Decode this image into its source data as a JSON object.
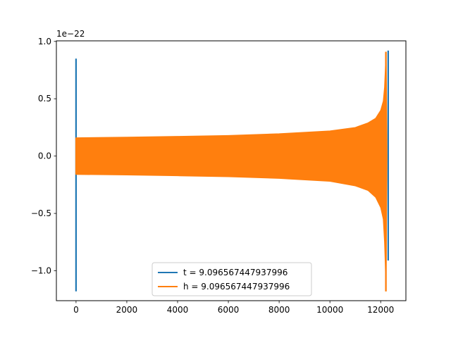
{
  "chart_data": {
    "type": "line",
    "x_range": [
      -774,
      12993
    ],
    "y_range": [
      -1.261e-22,
      1.005e-22
    ],
    "offset_text": "1e−22",
    "x_ticks": [
      {
        "value": 0,
        "label": "0"
      },
      {
        "value": 2000,
        "label": "2000"
      },
      {
        "value": 4000,
        "label": "4000"
      },
      {
        "value": 6000,
        "label": "6000"
      },
      {
        "value": 8000,
        "label": "8000"
      },
      {
        "value": 10000,
        "label": "10000"
      },
      {
        "value": 12000,
        "label": "12000"
      }
    ],
    "y_ticks": [
      {
        "value": 1e-22,
        "label": "1.0"
      },
      {
        "value": 5e-23,
        "label": "0.5"
      },
      {
        "value": 0.0,
        "label": "0.0"
      },
      {
        "value": -5e-23,
        "label": "−0.5"
      },
      {
        "value": -1e-22,
        "label": "−1.0"
      }
    ],
    "legend_position": "lower-center",
    "series": [
      {
        "name": "t = 9.096567447937996",
        "color": "#1f77b4",
        "pulses": [
          {
            "x": 0,
            "ymin": -1.18e-22,
            "ymax": 8.5e-23
          },
          {
            "x": 12295,
            "ymin": -9.1e-23,
            "ymax": 9.2e-23
          }
        ]
      },
      {
        "name": "h = 9.096567447937996",
        "color": "#ff7f0e",
        "chirp_envelope": {
          "x": [
            0,
            2000,
            4000,
            6000,
            8000,
            10000,
            11000,
            11500,
            11800,
            12000,
            12100,
            12150,
            12180,
            12210,
            12230,
            12250
          ],
          "upper": [
            1.6e-23,
            1.65e-23,
            1.72e-23,
            1.8e-23,
            1.95e-23,
            2.2e-23,
            2.5e-23,
            2.9e-23,
            3.3e-23,
            4e-23,
            4.8e-23,
            6e-23,
            7.5e-23,
            9.1e-23,
            6e-23,
            0.0
          ],
          "lower": [
            -1.6e-23,
            -1.65e-23,
            -1.72e-23,
            -1.8e-23,
            -1.95e-23,
            -2.2e-23,
            -2.6e-23,
            -3e-23,
            -3.6e-23,
            -4.5e-23,
            -5.5e-23,
            -7.5e-23,
            -9.5e-23,
            -1.18e-22,
            -6e-23,
            0.0
          ]
        }
      }
    ]
  }
}
